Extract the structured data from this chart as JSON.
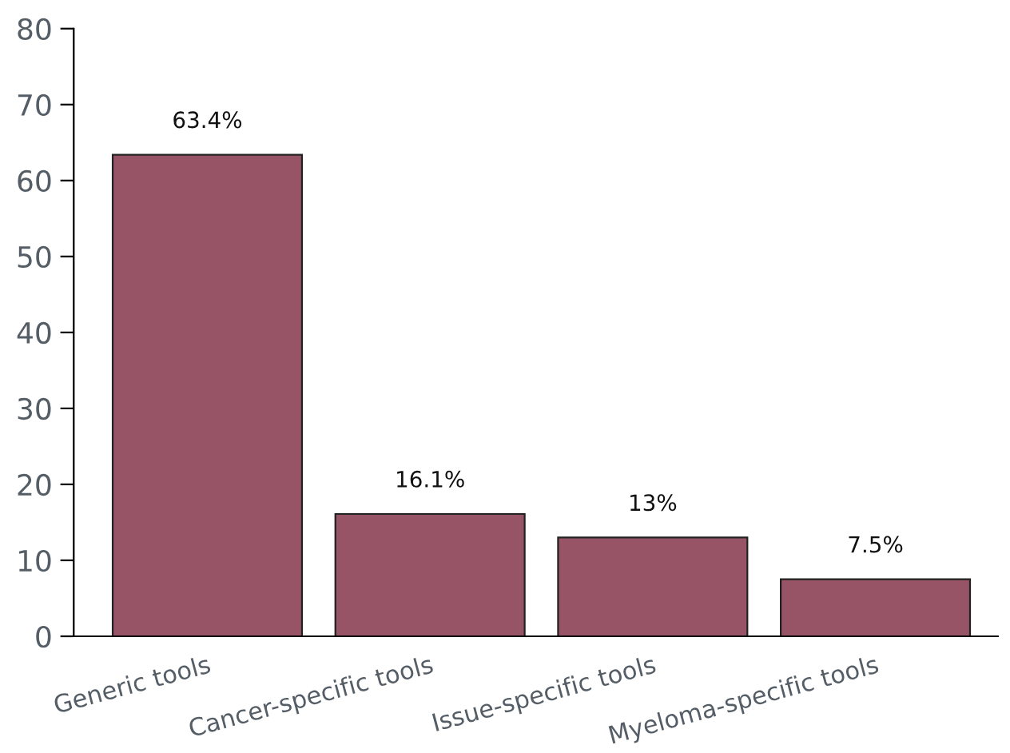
{
  "chart_data": {
    "type": "bar",
    "categories": [
      "Generic tools",
      "Cancer-specific tools",
      "Issue-specific tools",
      "Myeloma-specific tools"
    ],
    "values": [
      63.4,
      16.1,
      13,
      7.5
    ],
    "value_labels": [
      "63.4%",
      "16.1%",
      "13%",
      "7.5%"
    ],
    "color": "#985467",
    "ylim": [
      0,
      80
    ],
    "yticks": [
      0,
      10,
      20,
      30,
      40,
      50,
      60,
      70,
      80
    ],
    "grid": false,
    "legend": false
  }
}
